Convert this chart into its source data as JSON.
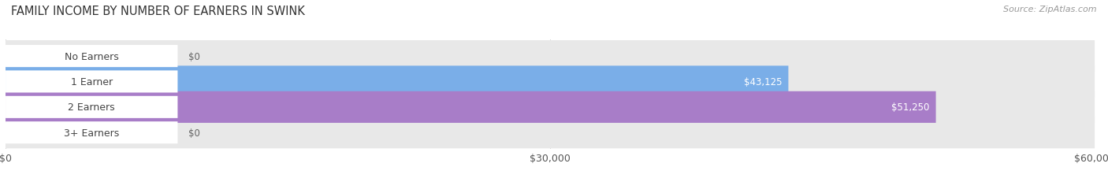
{
  "title": "FAMILY INCOME BY NUMBER OF EARNERS IN SWINK",
  "source": "Source: ZipAtlas.com",
  "categories": [
    "No Earners",
    "1 Earner",
    "2 Earners",
    "3+ Earners"
  ],
  "values": [
    0,
    43125,
    51250,
    0
  ],
  "bar_colors": [
    "#f0a0a0",
    "#7aaee8",
    "#a87dc8",
    "#70cdc8"
  ],
  "track_color": "#e8e8e8",
  "xlim": [
    0,
    60000
  ],
  "xticks": [
    0,
    30000,
    60000
  ],
  "xticklabels": [
    "$0",
    "$30,000",
    "$60,000"
  ],
  "value_labels": [
    "$0",
    "$43,125",
    "$51,250",
    "$0"
  ],
  "figsize": [
    14.06,
    2.32
  ],
  "dpi": 100,
  "title_fontsize": 10.5,
  "bar_height": 0.62,
  "label_fontsize": 9,
  "value_fontsize": 8.5
}
